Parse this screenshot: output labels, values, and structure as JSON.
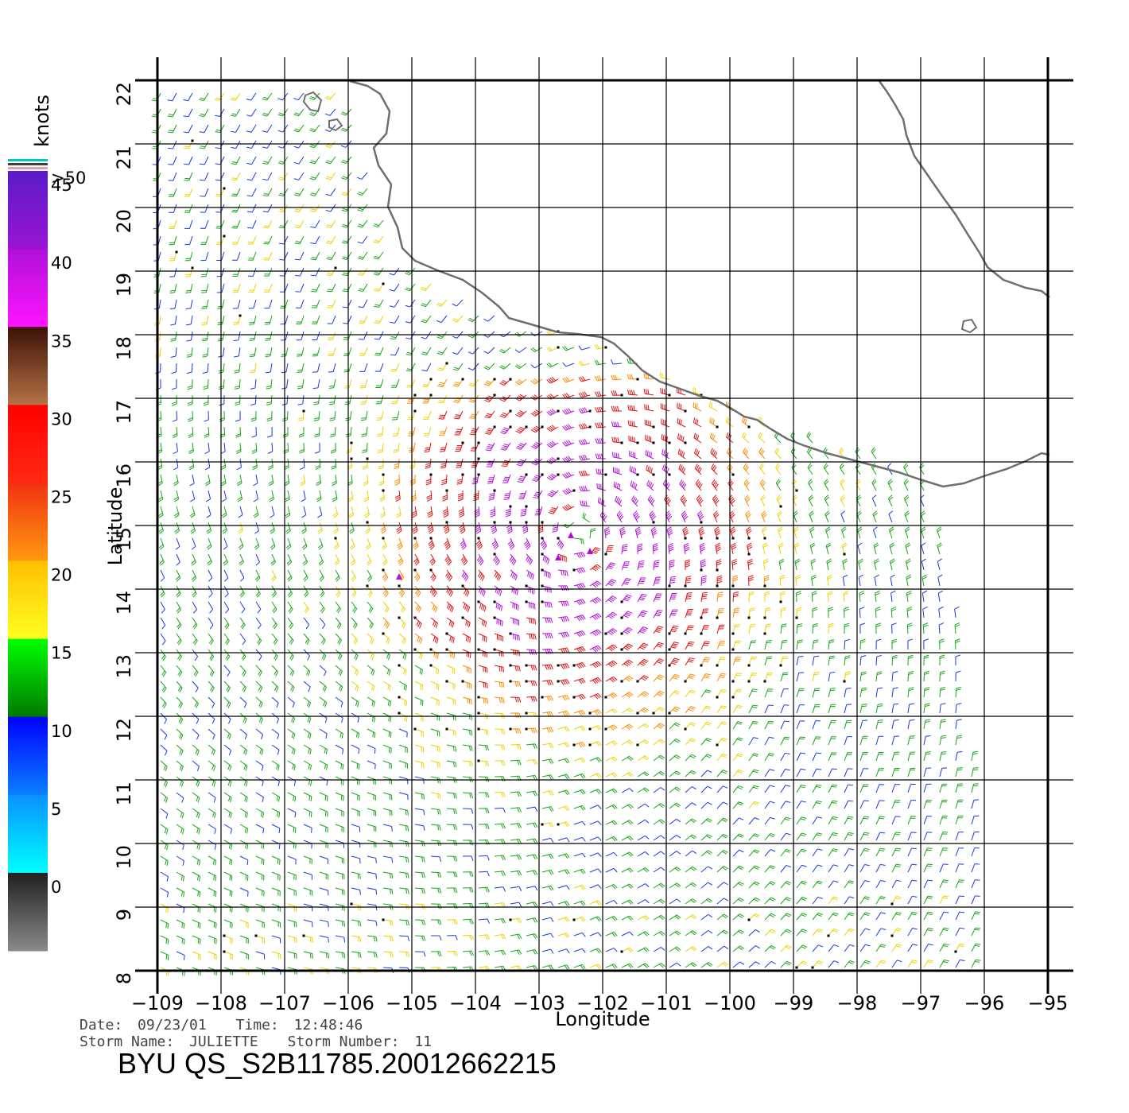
{
  "map": {
    "x_axis_label": "Longitude",
    "y_axis_label": "Latitude",
    "lon_ticks": [
      "-109",
      "-108",
      "-107",
      "-106",
      "-105",
      "-104",
      "-103",
      "-102",
      "-101",
      "-100",
      "-99",
      "-98",
      "-97",
      "-96",
      "-95"
    ],
    "lat_ticks": [
      "8",
      "9",
      "10",
      "11",
      "12",
      "13",
      "14",
      "15",
      "16",
      "17",
      "18",
      "19",
      "20",
      "21",
      "22"
    ],
    "lon_range": [
      -109,
      -95
    ],
    "lat_range": [
      8,
      22
    ],
    "grid": true,
    "storm_center": {
      "lon": -102.4,
      "lat": 14.9
    }
  },
  "legend": {
    "unit": "knots",
    "top_label": ">50",
    "labels": [
      "45",
      "40",
      "35",
      "30",
      "25",
      "20",
      "15",
      "10",
      "5",
      "0"
    ],
    "bands": [
      {
        "from": 45,
        "to": 50,
        "top": "#5a1bc8",
        "bottom": "#9a14d2"
      },
      {
        "from": 40,
        "to": 45,
        "top": "#b010d8",
        "bottom": "#ff14ff"
      },
      {
        "from": 35,
        "to": 40,
        "top": "#3d1208",
        "bottom": "#b57245"
      },
      {
        "from": 30,
        "to": 35,
        "top": "#ff0000",
        "bottom": "#ff2a14"
      },
      {
        "from": 25,
        "to": 30,
        "top": "#f03210",
        "bottom": "#ff9a10"
      },
      {
        "from": 20,
        "to": 25,
        "top": "#ffc000",
        "bottom": "#ffff20"
      },
      {
        "from": 15,
        "to": 20,
        "top": "#00ff00",
        "bottom": "#007800"
      },
      {
        "from": 10,
        "to": 15,
        "top": "#0000ff",
        "bottom": "#0a80ff"
      },
      {
        "from": 5,
        "to": 10,
        "top": "#0a90ff",
        "bottom": "#00ffff"
      },
      {
        "from": 0,
        "to": 5,
        "top": "#202020",
        "bottom": "#8a8a8a"
      }
    ],
    "wind_colors": {
      "calm": "#555555",
      "light": "#1838e0",
      "moderate": "#12a812",
      "fresh": "#f0d000",
      "strong": "#ff8a00",
      "gale": "#e01010",
      "storm": "#b010d8",
      "coast": "#777777"
    }
  },
  "info": {
    "date_label": "Date:",
    "date": "09/23/01",
    "time_label": "Time:",
    "time": "12:48:46",
    "storm_name_label": "Storm Name:",
    "storm_name": "JULIETTE",
    "storm_number_label": "Storm Number:",
    "storm_number": "11",
    "product_id": "BYU QS_S2B11785.20012662215"
  }
}
